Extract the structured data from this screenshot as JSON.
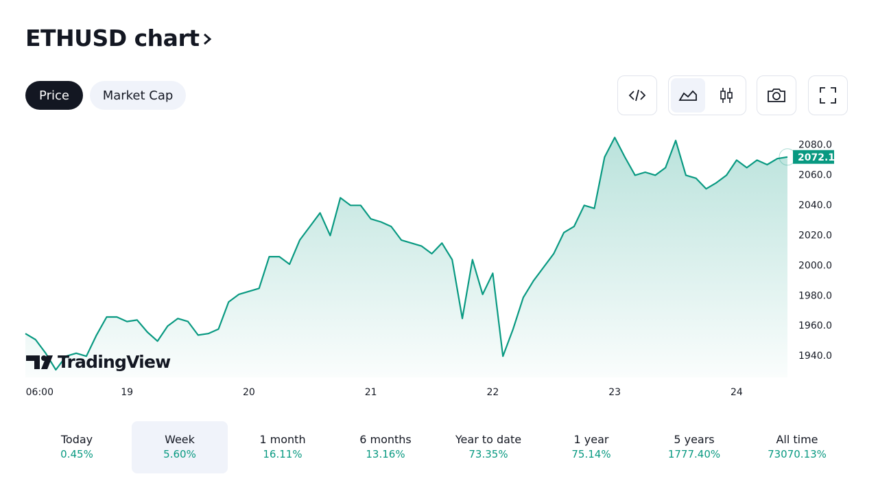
{
  "header": {
    "title": "ETHUSD chart"
  },
  "tabs": [
    "Price",
    "Market Cap"
  ],
  "active_tab": 0,
  "chart_data": {
    "type": "area",
    "color": "#089981",
    "categories": [
      null,
      "06:00",
      null,
      null,
      null,
      null,
      null,
      null,
      null,
      null,
      "19",
      null,
      null,
      null,
      null,
      null,
      null,
      null,
      null,
      null,
      null,
      null,
      "20",
      null,
      null,
      null,
      null,
      null,
      null,
      null,
      null,
      null,
      null,
      null,
      "21",
      null,
      null,
      null,
      null,
      null,
      null,
      null,
      null,
      null,
      null,
      null,
      "22",
      null,
      null,
      null,
      null,
      null,
      null,
      null,
      null,
      null,
      null,
      null,
      "23",
      null,
      null,
      null,
      null,
      null,
      null,
      null,
      null,
      null,
      null,
      null,
      "24",
      null,
      null,
      null,
      null,
      null
    ],
    "values": [
      1955,
      1951,
      1942,
      1931,
      1940,
      1942,
      1940,
      1954,
      1966,
      1966,
      1963,
      1964,
      1956,
      1950,
      1960,
      1965,
      1963,
      1954,
      1955,
      1958,
      1976,
      1981,
      1983,
      1985,
      2006,
      2006,
      2001,
      2017,
      2026,
      2035,
      2020,
      2045,
      2040,
      2040,
      2031,
      2029,
      2026,
      2017,
      2015,
      2013,
      2008,
      2015,
      2004,
      1965,
      2004,
      1981,
      1995,
      1940,
      1958,
      1979,
      1990,
      1999,
      2008,
      2022,
      2026,
      2040,
      2038,
      2072,
      2085,
      2072,
      2060,
      2062,
      2060,
      2065,
      2083,
      2060,
      2058,
      2051,
      2055,
      2060,
      2070,
      2065,
      2070,
      2067,
      2071,
      2072.1
    ],
    "ylim": [
      1926,
      2092
    ],
    "yticks": [
      {
        "value": 1940,
        "label": "1940.0"
      },
      {
        "value": 1960,
        "label": "1960.0"
      },
      {
        "value": 1980,
        "label": "1980.0"
      },
      {
        "value": 2000,
        "label": "2000.0"
      },
      {
        "value": 2020,
        "label": "2020.0"
      },
      {
        "value": 2040,
        "label": "2040.0"
      },
      {
        "value": 2060,
        "label": "2060.0"
      },
      {
        "value": 2080,
        "label": "2080.0"
      }
    ],
    "watermark": "TradingView"
  },
  "periods": [
    {
      "label": "Today",
      "change": "0.45%"
    },
    {
      "label": "Week",
      "change": "5.60%"
    },
    {
      "label": "1 month",
      "change": "16.11%"
    },
    {
      "label": "6 months",
      "change": "13.16%"
    },
    {
      "label": "Year to date",
      "change": "73.35%"
    },
    {
      "label": "1 year",
      "change": "75.14%"
    },
    {
      "label": "5 years",
      "change": "1777.40%"
    },
    {
      "label": "All time",
      "change": "73070.13%"
    }
  ],
  "active_period": 1
}
